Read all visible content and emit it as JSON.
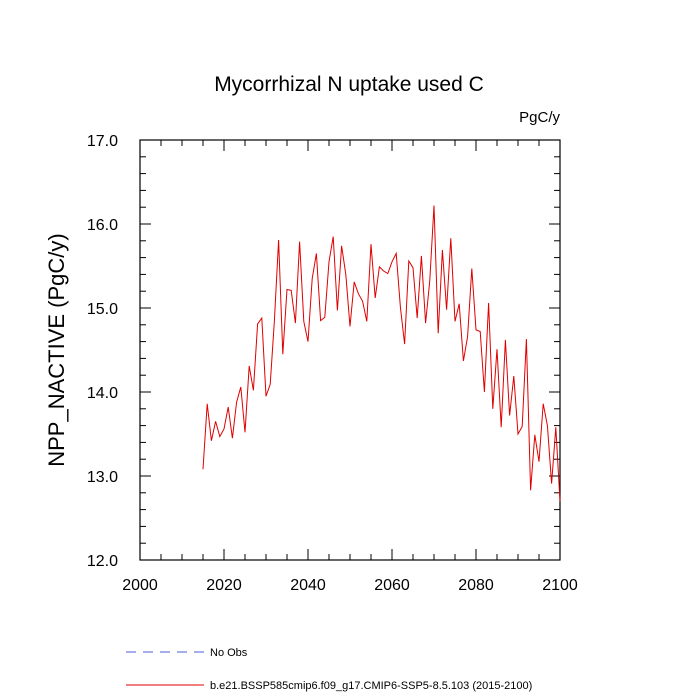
{
  "chart_data": {
    "type": "line",
    "title": "Mycorrhizal N uptake used C",
    "units_label": "PgC/y",
    "ylabel": "NPP_NACTIVE  (PgC/y)",
    "xlabel": "",
    "xlim": [
      2000,
      2100
    ],
    "ylim": [
      12.0,
      17.0
    ],
    "x_ticks": [
      2000,
      2020,
      2040,
      2060,
      2080,
      2100
    ],
    "x_tick_labels": [
      "2000",
      "2020",
      "2040",
      "2060",
      "2080",
      "2100"
    ],
    "y_ticks": [
      12.0,
      13.0,
      14.0,
      15.0,
      16.0,
      17.0
    ],
    "y_tick_labels": [
      "12.0",
      "13.0",
      "14.0",
      "15.0",
      "16.0",
      "17.0"
    ],
    "grid": false,
    "legend_position": "bottom",
    "series": [
      {
        "name": "No Obs",
        "color": "#4f5fd6",
        "style": "dashed",
        "x": [],
        "y": []
      },
      {
        "name": "b.e21.BSSP585cmip6.f09_g17.CMIP6-SSP5-8.5.103 (2015-2100)",
        "color": "#e00000",
        "style": "solid",
        "x": [
          2015,
          2016,
          2017,
          2018,
          2019,
          2020,
          2021,
          2022,
          2023,
          2024,
          2025,
          2026,
          2027,
          2028,
          2029,
          2030,
          2031,
          2032,
          2033,
          2034,
          2035,
          2036,
          2037,
          2038,
          2039,
          2040,
          2041,
          2042,
          2043,
          2044,
          2045,
          2046,
          2047,
          2048,
          2049,
          2050,
          2051,
          2052,
          2053,
          2054,
          2055,
          2056,
          2057,
          2058,
          2059,
          2060,
          2061,
          2062,
          2063,
          2064,
          2065,
          2066,
          2067,
          2068,
          2069,
          2070,
          2071,
          2072,
          2073,
          2074,
          2075,
          2076,
          2077,
          2078,
          2079,
          2080,
          2081,
          2082,
          2083,
          2084,
          2085,
          2086,
          2087,
          2088,
          2089,
          2090,
          2091,
          2092,
          2093,
          2094,
          2095,
          2096,
          2097,
          2098,
          2099,
          2100
        ],
        "y": [
          13.08,
          13.86,
          13.42,
          13.65,
          13.47,
          13.56,
          13.82,
          13.45,
          13.88,
          14.06,
          13.52,
          14.31,
          14.02,
          14.81,
          14.88,
          13.95,
          14.09,
          14.85,
          15.81,
          14.45,
          15.22,
          15.21,
          14.82,
          15.79,
          14.84,
          14.6,
          15.35,
          15.65,
          14.85,
          14.89,
          15.55,
          15.85,
          14.97,
          15.74,
          15.4,
          14.78,
          15.31,
          15.17,
          15.08,
          14.84,
          15.76,
          15.12,
          15.49,
          15.44,
          15.41,
          15.55,
          15.65,
          15.01,
          14.57,
          15.56,
          15.48,
          14.88,
          15.62,
          14.82,
          15.33,
          16.22,
          14.7,
          15.69,
          14.98,
          15.83,
          14.84,
          15.05,
          14.37,
          14.66,
          15.47,
          14.74,
          14.72,
          14.0,
          15.06,
          13.8,
          14.51,
          13.58,
          14.62,
          13.72,
          14.19,
          13.5,
          13.59,
          14.63,
          12.83,
          13.49,
          13.17,
          13.86,
          13.6,
          12.91,
          13.58,
          12.7
        ]
      }
    ]
  }
}
